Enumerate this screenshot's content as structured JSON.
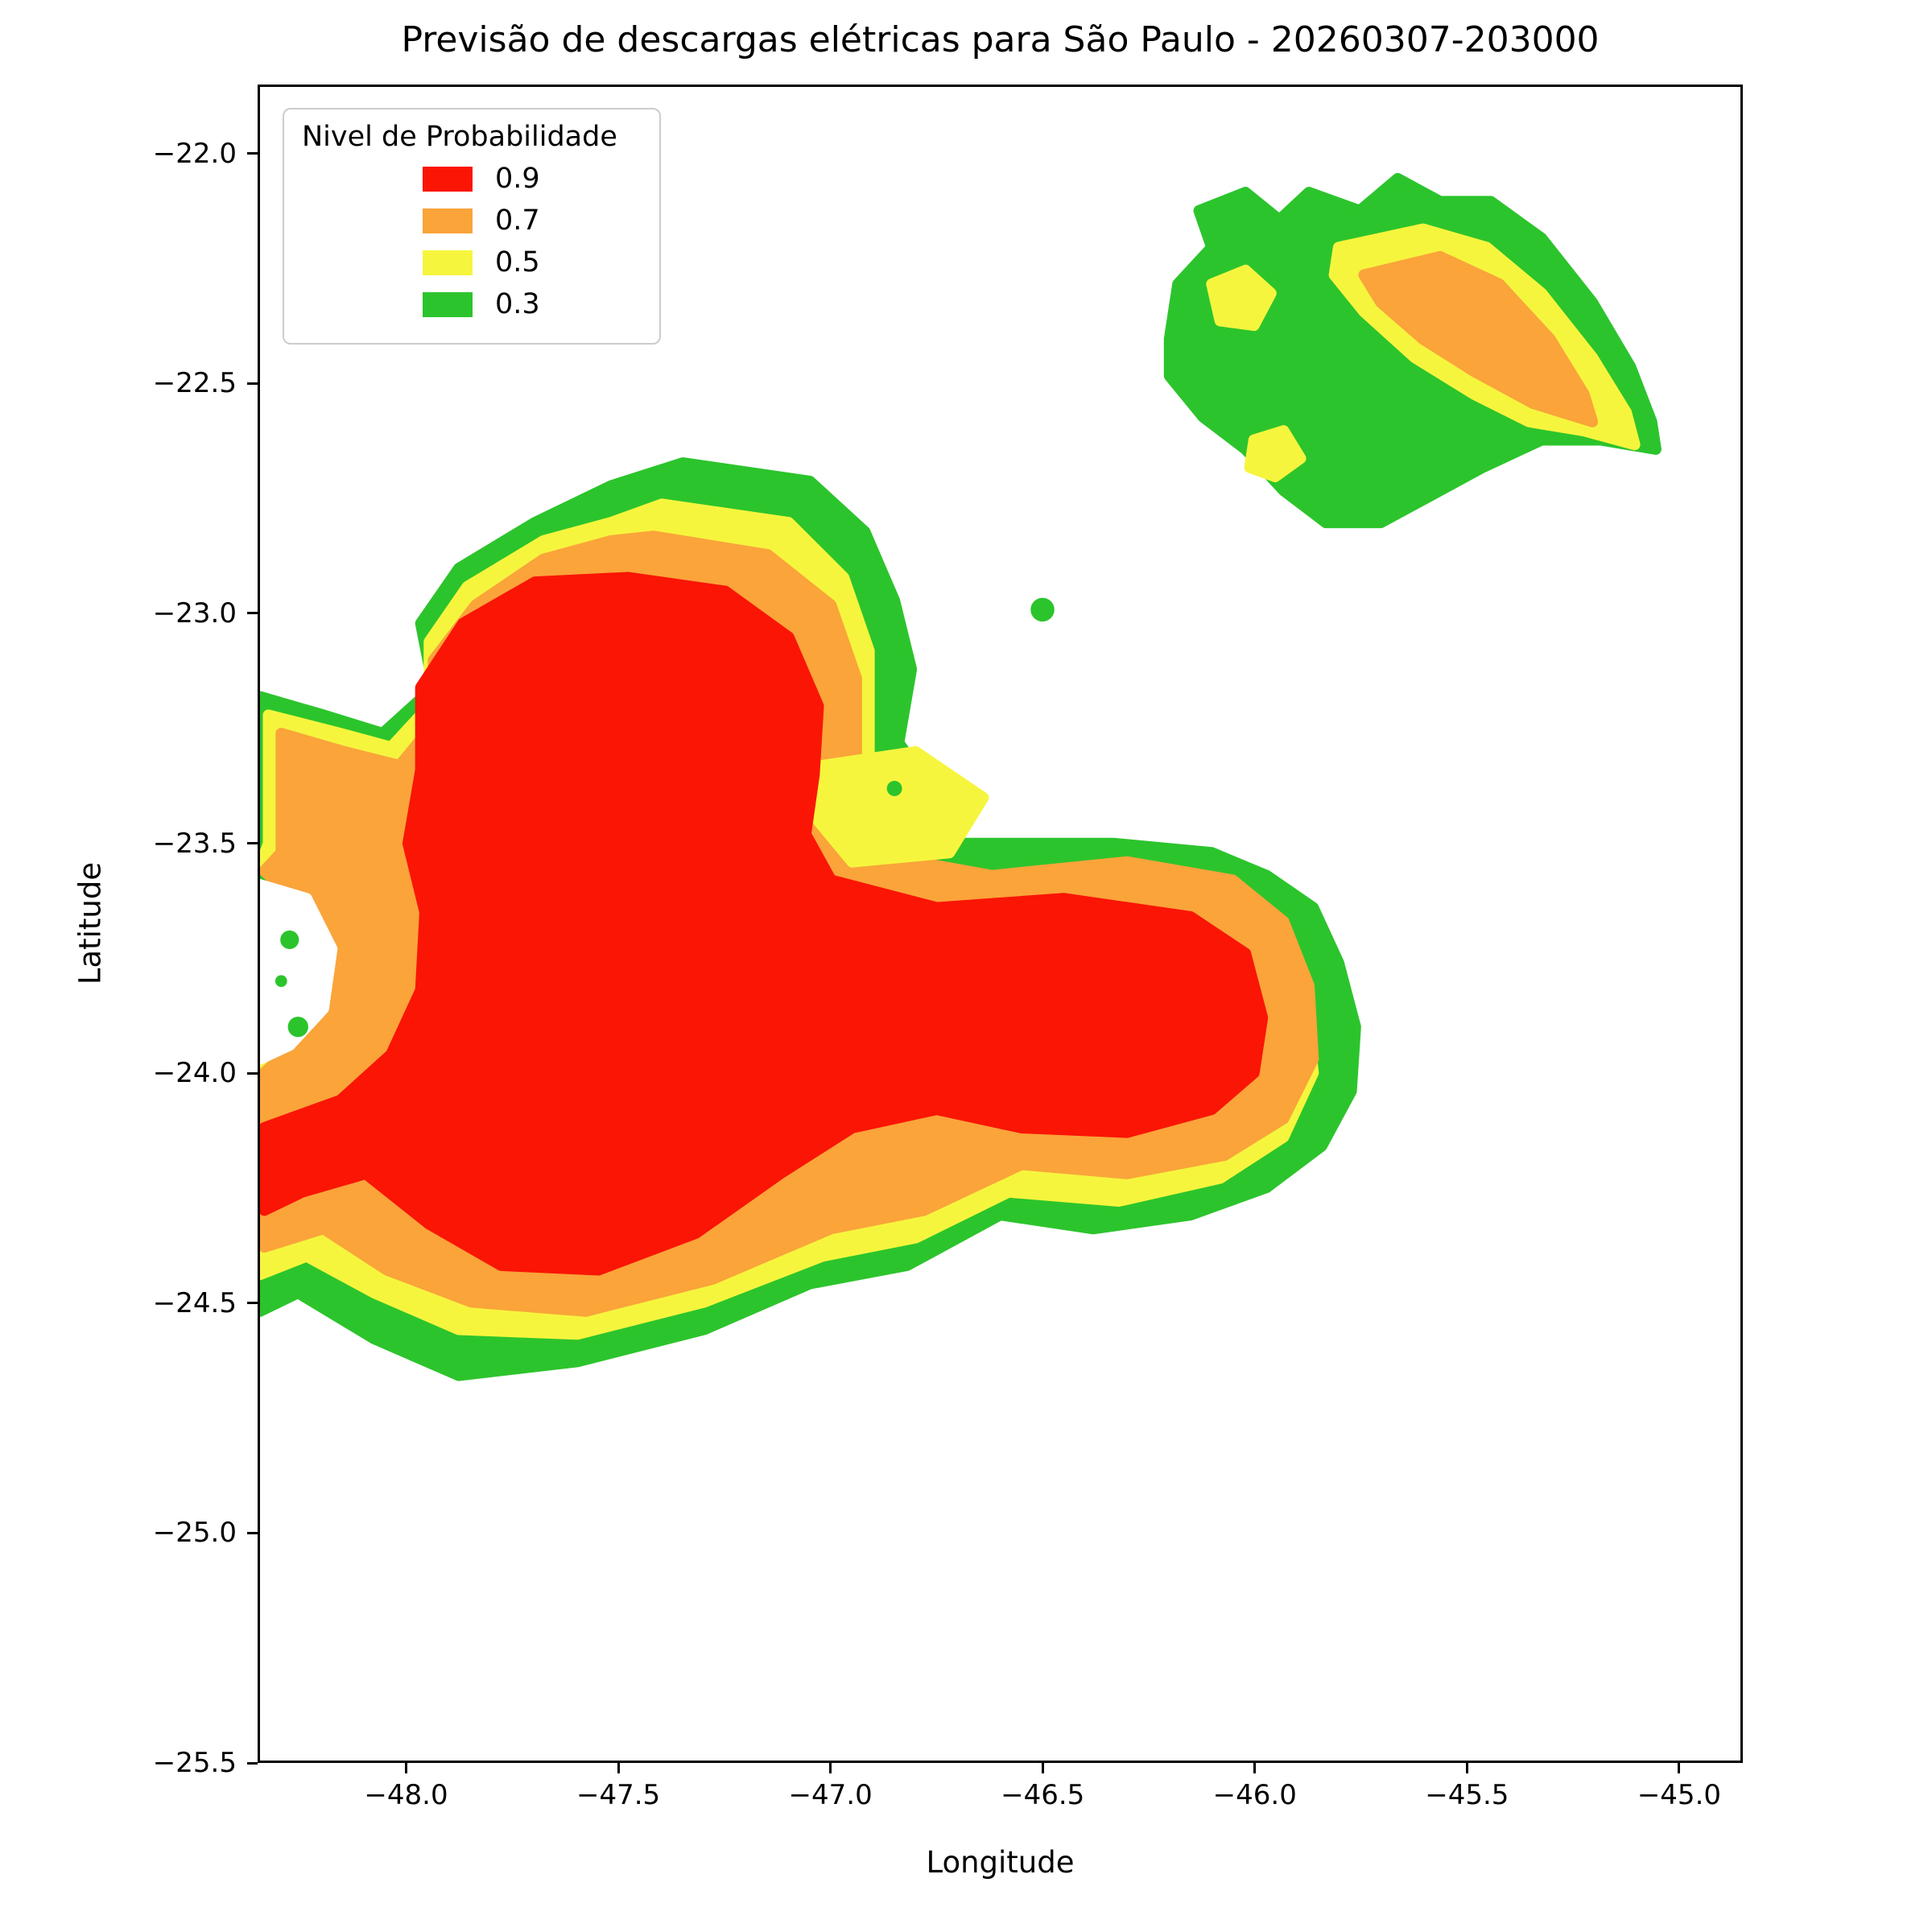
{
  "chart_data": {
    "type": "contour",
    "title": "Previsão de descargas elétricas para São Paulo - 20260307-203000",
    "xlabel": "Longitude",
    "ylabel": "Latitude",
    "xlim": [
      -48.35,
      -44.85
    ],
    "ylim": [
      -25.5,
      -21.85
    ],
    "grid": false,
    "legend_position": "upper left",
    "levels": [
      0.3,
      0.5,
      0.7,
      0.9
    ],
    "xticks": [
      {
        "value": -48.0,
        "label": "−48.0"
      },
      {
        "value": -47.5,
        "label": "−47.5"
      },
      {
        "value": -47.0,
        "label": "−47.0"
      },
      {
        "value": -46.5,
        "label": "−46.5"
      },
      {
        "value": -46.0,
        "label": "−46.0"
      },
      {
        "value": -45.5,
        "label": "−45.5"
      },
      {
        "value": -45.0,
        "label": "−45.0"
      }
    ],
    "yticks": [
      {
        "value": -22.0,
        "label": "−22.0"
      },
      {
        "value": -22.5,
        "label": "−22.5"
      },
      {
        "value": -23.0,
        "label": "−23.0"
      },
      {
        "value": -23.5,
        "label": "−23.5"
      },
      {
        "value": -24.0,
        "label": "−24.0"
      },
      {
        "value": -24.5,
        "label": "−24.5"
      },
      {
        "value": -25.0,
        "label": "−25.0"
      },
      {
        "value": -25.5,
        "label": "−25.5"
      }
    ],
    "legend": {
      "title": "Nivel de Probabilidade",
      "entries": [
        {
          "label": "0.9",
          "level": 0.9,
          "color": "#fa1505"
        },
        {
          "label": "0.7",
          "level": 0.7,
          "color": "#faa43a"
        },
        {
          "label": "0.5",
          "level": 0.5,
          "color": "#f6f53e"
        },
        {
          "label": "0.3",
          "level": 0.3,
          "color": "#2cc42c"
        }
      ]
    },
    "regions": [
      {
        "name": "main-cell-p03",
        "level": 0.3,
        "color": "#2cc42c",
        "points": [
          [
            -47.35,
            -22.67
          ],
          [
            -47.05,
            -22.71
          ],
          [
            -46.92,
            -22.82
          ],
          [
            -46.85,
            -22.97
          ],
          [
            -46.81,
            -23.12
          ],
          [
            -46.84,
            -23.28
          ],
          [
            -46.78,
            -23.36
          ],
          [
            -46.83,
            -23.45
          ],
          [
            -46.7,
            -23.5
          ],
          [
            -46.33,
            -23.5
          ],
          [
            -46.1,
            -23.52
          ],
          [
            -45.97,
            -23.57
          ],
          [
            -45.86,
            -23.64
          ],
          [
            -45.8,
            -23.76
          ],
          [
            -45.76,
            -23.9
          ],
          [
            -45.77,
            -24.04
          ],
          [
            -45.84,
            -24.16
          ],
          [
            -45.97,
            -24.25
          ],
          [
            -46.15,
            -24.31
          ],
          [
            -46.38,
            -24.34
          ],
          [
            -46.6,
            -24.31
          ],
          [
            -46.82,
            -24.42
          ],
          [
            -47.05,
            -24.46
          ],
          [
            -47.3,
            -24.56
          ],
          [
            -47.6,
            -24.63
          ],
          [
            -47.88,
            -24.66
          ],
          [
            -48.08,
            -24.58
          ],
          [
            -48.26,
            -24.48
          ],
          [
            -48.35,
            -24.52
          ],
          [
            -48.35,
            -23.97
          ],
          [
            -48.27,
            -23.95
          ],
          [
            -48.19,
            -23.86
          ],
          [
            -48.17,
            -23.72
          ],
          [
            -48.25,
            -23.61
          ],
          [
            -48.35,
            -23.57
          ],
          [
            -48.35,
            -23.18
          ],
          [
            -48.2,
            -23.22
          ],
          [
            -48.06,
            -23.26
          ],
          [
            -47.94,
            -23.16
          ],
          [
            -47.97,
            -23.02
          ],
          [
            -47.88,
            -22.9
          ],
          [
            -47.7,
            -22.8
          ],
          [
            -47.52,
            -22.72
          ]
        ]
      },
      {
        "name": "main-cell-p05",
        "level": 0.5,
        "color": "#f6f53e",
        "points": [
          [
            -47.4,
            -22.76
          ],
          [
            -47.1,
            -22.8
          ],
          [
            -46.97,
            -22.92
          ],
          [
            -46.91,
            -23.08
          ],
          [
            -46.91,
            -23.34
          ],
          [
            -46.85,
            -23.44
          ],
          [
            -46.89,
            -23.55
          ],
          [
            -46.64,
            -23.61
          ],
          [
            -46.3,
            -23.58
          ],
          [
            -46.08,
            -23.62
          ],
          [
            -45.95,
            -23.7
          ],
          [
            -45.88,
            -23.84
          ],
          [
            -45.86,
            -24.0
          ],
          [
            -45.93,
            -24.14
          ],
          [
            -46.08,
            -24.23
          ],
          [
            -46.32,
            -24.28
          ],
          [
            -46.58,
            -24.26
          ],
          [
            -46.8,
            -24.36
          ],
          [
            -47.02,
            -24.4
          ],
          [
            -47.3,
            -24.5
          ],
          [
            -47.6,
            -24.57
          ],
          [
            -47.88,
            -24.56
          ],
          [
            -48.08,
            -24.48
          ],
          [
            -48.24,
            -24.4
          ],
          [
            -48.35,
            -24.44
          ],
          [
            -48.35,
            -23.99
          ],
          [
            -48.28,
            -23.94
          ],
          [
            -48.22,
            -23.83
          ],
          [
            -48.21,
            -23.71
          ],
          [
            -48.28,
            -23.61
          ],
          [
            -48.35,
            -23.55
          ],
          [
            -48.33,
            -23.5
          ],
          [
            -48.33,
            -23.22
          ],
          [
            -48.16,
            -23.26
          ],
          [
            -48.04,
            -23.29
          ],
          [
            -47.95,
            -23.2
          ],
          [
            -47.95,
            -23.06
          ],
          [
            -47.86,
            -22.94
          ],
          [
            -47.68,
            -22.84
          ],
          [
            -47.52,
            -22.8
          ]
        ]
      },
      {
        "name": "main-cell-p07",
        "level": 0.7,
        "color": "#faa43a",
        "points": [
          [
            -47.42,
            -22.83
          ],
          [
            -47.15,
            -22.87
          ],
          [
            -47.0,
            -22.98
          ],
          [
            -46.94,
            -23.14
          ],
          [
            -46.94,
            -23.32
          ],
          [
            -46.88,
            -23.42
          ],
          [
            -46.92,
            -23.52
          ],
          [
            -46.62,
            -23.57
          ],
          [
            -46.3,
            -23.54
          ],
          [
            -46.05,
            -23.58
          ],
          [
            -45.93,
            -23.67
          ],
          [
            -45.87,
            -23.81
          ],
          [
            -45.86,
            -23.97
          ],
          [
            -45.93,
            -24.1
          ],
          [
            -46.07,
            -24.18
          ],
          [
            -46.3,
            -24.22
          ],
          [
            -46.55,
            -24.2
          ],
          [
            -46.78,
            -24.3
          ],
          [
            -47.0,
            -24.34
          ],
          [
            -47.28,
            -24.45
          ],
          [
            -47.58,
            -24.52
          ],
          [
            -47.85,
            -24.5
          ],
          [
            -48.05,
            -24.43
          ],
          [
            -48.2,
            -24.34
          ],
          [
            -48.34,
            -24.38
          ],
          [
            -48.34,
            -24.0
          ],
          [
            -48.27,
            -23.94
          ],
          [
            -48.21,
            -23.83
          ],
          [
            -48.2,
            -23.72
          ],
          [
            -48.27,
            -23.62
          ],
          [
            -48.34,
            -23.56
          ],
          [
            -48.3,
            -23.52
          ],
          [
            -48.3,
            -23.26
          ],
          [
            -48.15,
            -23.3
          ],
          [
            -48.02,
            -23.33
          ],
          [
            -47.94,
            -23.24
          ],
          [
            -47.94,
            -23.1
          ],
          [
            -47.84,
            -22.98
          ],
          [
            -47.68,
            -22.88
          ],
          [
            -47.52,
            -22.84
          ]
        ]
      },
      {
        "name": "valley-patch-p05",
        "level": 0.5,
        "color": "#f6f53e",
        "points": [
          [
            -47.02,
            -23.33
          ],
          [
            -46.8,
            -23.3
          ],
          [
            -46.64,
            -23.4
          ],
          [
            -46.72,
            -23.52
          ],
          [
            -46.95,
            -23.54
          ],
          [
            -47.04,
            -23.44
          ]
        ]
      },
      {
        "name": "main-cell-p09",
        "level": 0.9,
        "color": "#fa1505",
        "points": [
          [
            -47.48,
            -22.92
          ],
          [
            -47.25,
            -22.95
          ],
          [
            -47.1,
            -23.05
          ],
          [
            -47.03,
            -23.2
          ],
          [
            -47.04,
            -23.35
          ],
          [
            -47.06,
            -23.48
          ],
          [
            -47.0,
            -23.58
          ],
          [
            -46.75,
            -23.64
          ],
          [
            -46.45,
            -23.62
          ],
          [
            -46.15,
            -23.66
          ],
          [
            -46.02,
            -23.74
          ],
          [
            -45.98,
            -23.88
          ],
          [
            -46.0,
            -24.0
          ],
          [
            -46.1,
            -24.08
          ],
          [
            -46.3,
            -24.13
          ],
          [
            -46.55,
            -24.12
          ],
          [
            -46.75,
            -24.08
          ],
          [
            -46.95,
            -24.12
          ],
          [
            -47.12,
            -24.22
          ],
          [
            -47.32,
            -24.35
          ],
          [
            -47.55,
            -24.43
          ],
          [
            -47.78,
            -24.42
          ],
          [
            -47.95,
            -24.33
          ],
          [
            -48.1,
            -24.22
          ],
          [
            -48.25,
            -24.26
          ],
          [
            -48.34,
            -24.3
          ],
          [
            -48.34,
            -24.12
          ],
          [
            -48.16,
            -24.06
          ],
          [
            -48.04,
            -23.96
          ],
          [
            -47.97,
            -23.82
          ],
          [
            -47.96,
            -23.65
          ],
          [
            -48.0,
            -23.5
          ],
          [
            -47.97,
            -23.34
          ],
          [
            -47.97,
            -23.16
          ],
          [
            -47.87,
            -23.02
          ],
          [
            -47.7,
            -22.93
          ]
        ]
      },
      {
        "name": "coast-gap-white",
        "level": null,
        "color": "#ffffff",
        "points": [
          [
            -48.35,
            -23.59
          ],
          [
            -48.24,
            -23.62
          ],
          [
            -48.18,
            -23.73
          ],
          [
            -48.2,
            -23.86
          ],
          [
            -48.28,
            -23.94
          ],
          [
            -48.35,
            -23.97
          ]
        ]
      },
      {
        "name": "northeast-cell-p03",
        "level": 0.3,
        "color": "#2cc42c",
        "points": [
          [
            -46.2,
            -22.4
          ],
          [
            -46.18,
            -22.28
          ],
          [
            -46.1,
            -22.2
          ],
          [
            -46.13,
            -22.12
          ],
          [
            -46.02,
            -22.08
          ],
          [
            -45.94,
            -22.14
          ],
          [
            -45.87,
            -22.08
          ],
          [
            -45.75,
            -22.12
          ],
          [
            -45.66,
            -22.05
          ],
          [
            -45.56,
            -22.1
          ],
          [
            -45.44,
            -22.1
          ],
          [
            -45.32,
            -22.18
          ],
          [
            -45.2,
            -22.32
          ],
          [
            -45.11,
            -22.46
          ],
          [
            -45.06,
            -22.58
          ],
          [
            -45.05,
            -22.64
          ],
          [
            -45.18,
            -22.62
          ],
          [
            -45.32,
            -22.62
          ],
          [
            -45.46,
            -22.68
          ],
          [
            -45.58,
            -22.74
          ],
          [
            -45.7,
            -22.8
          ],
          [
            -45.83,
            -22.8
          ],
          [
            -45.93,
            -22.73
          ],
          [
            -46.02,
            -22.64
          ],
          [
            -46.12,
            -22.57
          ],
          [
            -46.2,
            -22.48
          ]
        ]
      },
      {
        "name": "northeast-cell-p05",
        "level": 0.5,
        "color": "#f6f53e",
        "points": [
          [
            -45.8,
            -22.2
          ],
          [
            -45.6,
            -22.16
          ],
          [
            -45.45,
            -22.2
          ],
          [
            -45.32,
            -22.3
          ],
          [
            -45.2,
            -22.44
          ],
          [
            -45.12,
            -22.56
          ],
          [
            -45.1,
            -22.63
          ],
          [
            -45.22,
            -22.6
          ],
          [
            -45.35,
            -22.58
          ],
          [
            -45.48,
            -22.52
          ],
          [
            -45.62,
            -22.44
          ],
          [
            -45.74,
            -22.34
          ],
          [
            -45.81,
            -22.26
          ]
        ]
      },
      {
        "name": "northeast-cell-p07",
        "level": 0.7,
        "color": "#faa43a",
        "points": [
          [
            -45.74,
            -22.26
          ],
          [
            -45.56,
            -22.22
          ],
          [
            -45.42,
            -22.28
          ],
          [
            -45.3,
            -22.4
          ],
          [
            -45.22,
            -22.52
          ],
          [
            -45.2,
            -22.58
          ],
          [
            -45.34,
            -22.54
          ],
          [
            -45.48,
            -22.47
          ],
          [
            -45.6,
            -22.4
          ],
          [
            -45.7,
            -22.32
          ]
        ]
      },
      {
        "name": "northeast-patch-a-p05",
        "level": 0.5,
        "color": "#f6f53e",
        "points": [
          [
            -46.1,
            -22.28
          ],
          [
            -46.02,
            -22.25
          ],
          [
            -45.96,
            -22.3
          ],
          [
            -46.0,
            -22.37
          ],
          [
            -46.08,
            -22.36
          ]
        ]
      },
      {
        "name": "northeast-patch-b-p05",
        "level": 0.5,
        "color": "#f6f53e",
        "points": [
          [
            -46.0,
            -22.62
          ],
          [
            -45.93,
            -22.6
          ],
          [
            -45.89,
            -22.66
          ],
          [
            -45.95,
            -22.7
          ],
          [
            -46.01,
            -22.68
          ]
        ]
      }
    ],
    "dots": [
      {
        "x": -46.5,
        "y": -22.99,
        "r": 0.028,
        "color": "#2cc42c"
      },
      {
        "x": -48.28,
        "y": -23.71,
        "r": 0.022,
        "color": "#2cc42c"
      },
      {
        "x": -48.3,
        "y": -23.8,
        "r": 0.014,
        "color": "#2cc42c"
      },
      {
        "x": -48.26,
        "y": -23.9,
        "r": 0.024,
        "color": "#2cc42c"
      },
      {
        "x": -46.85,
        "y": -23.38,
        "r": 0.018,
        "color": "#2cc42c"
      }
    ]
  }
}
